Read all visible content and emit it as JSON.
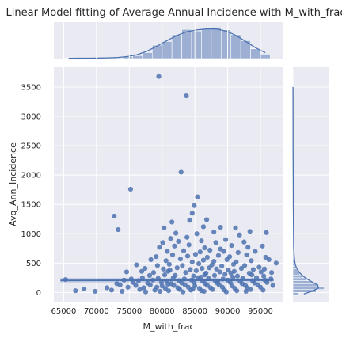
{
  "chart_data": {
    "type": "scatter",
    "title": "Linear Model fitting of Average Annual Incidence with M_with_frac",
    "xlabel": "M_with_frac",
    "ylabel": "Avg_Ann_Incidence",
    "xlim": [
      63500,
      98500
    ],
    "ylim": [
      -170,
      3850
    ],
    "x_ticks": [
      "65000",
      "70000",
      "75000",
      "80000",
      "85000",
      "90000",
      "95000"
    ],
    "y_ticks": [
      "0",
      "500",
      "1000",
      "1500",
      "2000",
      "2500",
      "3000",
      "3500"
    ],
    "grid": true,
    "regression": {
      "x": [
        64500,
        97000
      ],
      "y": [
        205,
        210
      ],
      "ci_lower": [
        160,
        170
      ],
      "ci_upper": [
        250,
        250
      ]
    },
    "marginal_x_hist": {
      "bin_edges": [
        65000,
        66500,
        68000,
        69500,
        71000,
        72500,
        74000,
        75500,
        77000,
        78500,
        80000,
        81500,
        83000,
        84500,
        86000,
        87500,
        89000,
        90500,
        92000,
        93500,
        95000,
        96500
      ],
      "counts": [
        1,
        1,
        1,
        1,
        2,
        2,
        5,
        8,
        16,
        36,
        46,
        64,
        78,
        74,
        80,
        84,
        77,
        64,
        48,
        26,
        12
      ]
    },
    "marginal_y_hist": {
      "bin_edges": [
        -50,
        0,
        50,
        100,
        150,
        200,
        250,
        300,
        350,
        400,
        450,
        500,
        600,
        700,
        800,
        1000,
        1300,
        1700,
        2200,
        2700,
        3200,
        3800
      ],
      "counts": [
        40,
        170,
        230,
        190,
        140,
        100,
        75,
        50,
        35,
        24,
        15,
        12,
        8,
        6,
        5,
        4,
        3,
        2,
        1,
        1,
        1
      ]
    },
    "series": [
      {
        "points": [
          [
            79500,
            3680
          ],
          [
            83700,
            3350
          ],
          [
            82900,
            2050
          ],
          [
            75200,
            1760
          ],
          [
            85400,
            1630
          ],
          [
            72700,
            1300
          ],
          [
            84900,
            1480
          ],
          [
            73300,
            1070
          ],
          [
            84600,
            1350
          ],
          [
            81500,
            1200
          ],
          [
            84200,
            1230
          ],
          [
            86800,
            1240
          ],
          [
            80300,
            1100
          ],
          [
            88900,
            1110
          ],
          [
            91200,
            1100
          ],
          [
            86300,
            1120
          ],
          [
            82100,
            1010
          ],
          [
            87900,
            1030
          ],
          [
            93400,
            1040
          ],
          [
            95900,
            1020
          ],
          [
            83800,
            940
          ],
          [
            85300,
            1000
          ],
          [
            81300,
            920
          ],
          [
            89700,
            900
          ],
          [
            91800,
            980
          ],
          [
            80100,
            850
          ],
          [
            82500,
            870
          ],
          [
            86000,
            880
          ],
          [
            88200,
            850
          ],
          [
            92500,
            860
          ],
          [
            79600,
            770
          ],
          [
            81900,
            790
          ],
          [
            84100,
            810
          ],
          [
            86500,
            760
          ],
          [
            88900,
            740
          ],
          [
            90600,
            800
          ],
          [
            93100,
            770
          ],
          [
            95300,
            790
          ],
          [
            80800,
            700
          ],
          [
            83300,
            710
          ],
          [
            85800,
            690
          ],
          [
            87300,
            720
          ],
          [
            89400,
            700
          ],
          [
            91600,
            680
          ],
          [
            94200,
            700
          ],
          [
            79100,
            610
          ],
          [
            81600,
            640
          ],
          [
            83900,
            620
          ],
          [
            85100,
            650
          ],
          [
            86900,
            600
          ],
          [
            88600,
            630
          ],
          [
            90300,
            610
          ],
          [
            92900,
            640
          ],
          [
            95800,
            600
          ],
          [
            78300,
            560
          ],
          [
            80600,
            540
          ],
          [
            82800,
            570
          ],
          [
            84600,
            520
          ],
          [
            86300,
            550
          ],
          [
            87900,
            530
          ],
          [
            89900,
            560
          ],
          [
            91300,
            520
          ],
          [
            93600,
            540
          ],
          [
            96300,
            560
          ],
          [
            97400,
            500
          ],
          [
            76100,
            470
          ],
          [
            79300,
            460
          ],
          [
            81100,
            480
          ],
          [
            83100,
            460
          ],
          [
            85600,
            490
          ],
          [
            87600,
            470
          ],
          [
            89100,
            450
          ],
          [
            90900,
            480
          ],
          [
            92600,
            460
          ],
          [
            94800,
            430
          ],
          [
            77400,
            410
          ],
          [
            80200,
            400
          ],
          [
            82300,
            420
          ],
          [
            84300,
            390
          ],
          [
            86100,
            410
          ],
          [
            88300,
            400
          ],
          [
            90100,
            380
          ],
          [
            92100,
            410
          ],
          [
            93900,
            390
          ],
          [
            95600,
            400
          ],
          [
            74600,
            350
          ],
          [
            76900,
            360
          ],
          [
            78700,
            340
          ],
          [
            80900,
            360
          ],
          [
            83600,
            340
          ],
          [
            85200,
            370
          ],
          [
            86700,
            330
          ],
          [
            88800,
            350
          ],
          [
            91000,
            360
          ],
          [
            93300,
            330
          ],
          [
            95100,
            350
          ],
          [
            96700,
            340
          ],
          [
            78100,
            290
          ],
          [
            80400,
            300
          ],
          [
            82000,
            290
          ],
          [
            84800,
            280
          ],
          [
            86500,
            300
          ],
          [
            88000,
            290
          ],
          [
            89600,
            310
          ],
          [
            91500,
            280
          ],
          [
            93700,
            300
          ],
          [
            95500,
            280
          ],
          [
            77000,
            250
          ],
          [
            79400,
            240
          ],
          [
            81700,
            250
          ],
          [
            83400,
            230
          ],
          [
            85500,
            250
          ],
          [
            87100,
            240
          ],
          [
            89300,
            230
          ],
          [
            90800,
            260
          ],
          [
            92300,
            240
          ],
          [
            94400,
            250
          ],
          [
            96600,
            230
          ],
          [
            74200,
            210
          ],
          [
            76400,
            200
          ],
          [
            78600,
            210
          ],
          [
            80700,
            190
          ],
          [
            82600,
            200
          ],
          [
            84500,
            210
          ],
          [
            86200,
            190
          ],
          [
            88100,
            200
          ],
          [
            90000,
            210
          ],
          [
            91900,
            190
          ],
          [
            93800,
            200
          ],
          [
            95700,
            210
          ],
          [
            75600,
            170
          ],
          [
            77800,
            160
          ],
          [
            79900,
            170
          ],
          [
            81400,
            150
          ],
          [
            83000,
            160
          ],
          [
            84900,
            170
          ],
          [
            86600,
            150
          ],
          [
            88400,
            160
          ],
          [
            90400,
            170
          ],
          [
            92200,
            150
          ],
          [
            94100,
            160
          ],
          [
            96000,
            170
          ],
          [
            73600,
            130
          ],
          [
            76000,
            120
          ],
          [
            78200,
            130
          ],
          [
            80000,
            110
          ],
          [
            81800,
            120
          ],
          [
            83500,
            130
          ],
          [
            85000,
            110
          ],
          [
            86900,
            120
          ],
          [
            88700,
            130
          ],
          [
            90700,
            110
          ],
          [
            92700,
            120
          ],
          [
            94600,
            130
          ],
          [
            96900,
            120
          ],
          [
            74800,
            90
          ],
          [
            77200,
            80
          ],
          [
            79200,
            90
          ],
          [
            80500,
            70
          ],
          [
            82400,
            80
          ],
          [
            84000,
            90
          ],
          [
            85700,
            70
          ],
          [
            87400,
            80
          ],
          [
            89200,
            90
          ],
          [
            91100,
            70
          ],
          [
            93000,
            80
          ],
          [
            95000,
            90
          ],
          [
            72300,
            40
          ],
          [
            76600,
            50
          ],
          [
            78900,
            40
          ],
          [
            81000,
            30
          ],
          [
            82700,
            50
          ],
          [
            84400,
            40
          ],
          [
            86000,
            30
          ],
          [
            87700,
            50
          ],
          [
            89500,
            40
          ],
          [
            91400,
            30
          ],
          [
            93500,
            50
          ],
          [
            95400,
            40
          ],
          [
            65300,
            220
          ],
          [
            66800,
            30
          ],
          [
            68100,
            60
          ],
          [
            69800,
            20
          ],
          [
            71600,
            80
          ],
          [
            73900,
            20
          ],
          [
            75300,
            230
          ],
          [
            73100,
            150
          ],
          [
            77500,
            10
          ],
          [
            79700,
            20
          ],
          [
            83200,
            10
          ],
          [
            86400,
            20
          ],
          [
            89800,
            10
          ],
          [
            92800,
            20
          ],
          [
            81200,
            380
          ],
          [
            87200,
            420
          ],
          [
            90500,
            330
          ],
          [
            85900,
            260
          ],
          [
            88500,
            190
          ],
          [
            80900,
            140
          ],
          [
            84700,
            60
          ]
        ]
      }
    ]
  }
}
